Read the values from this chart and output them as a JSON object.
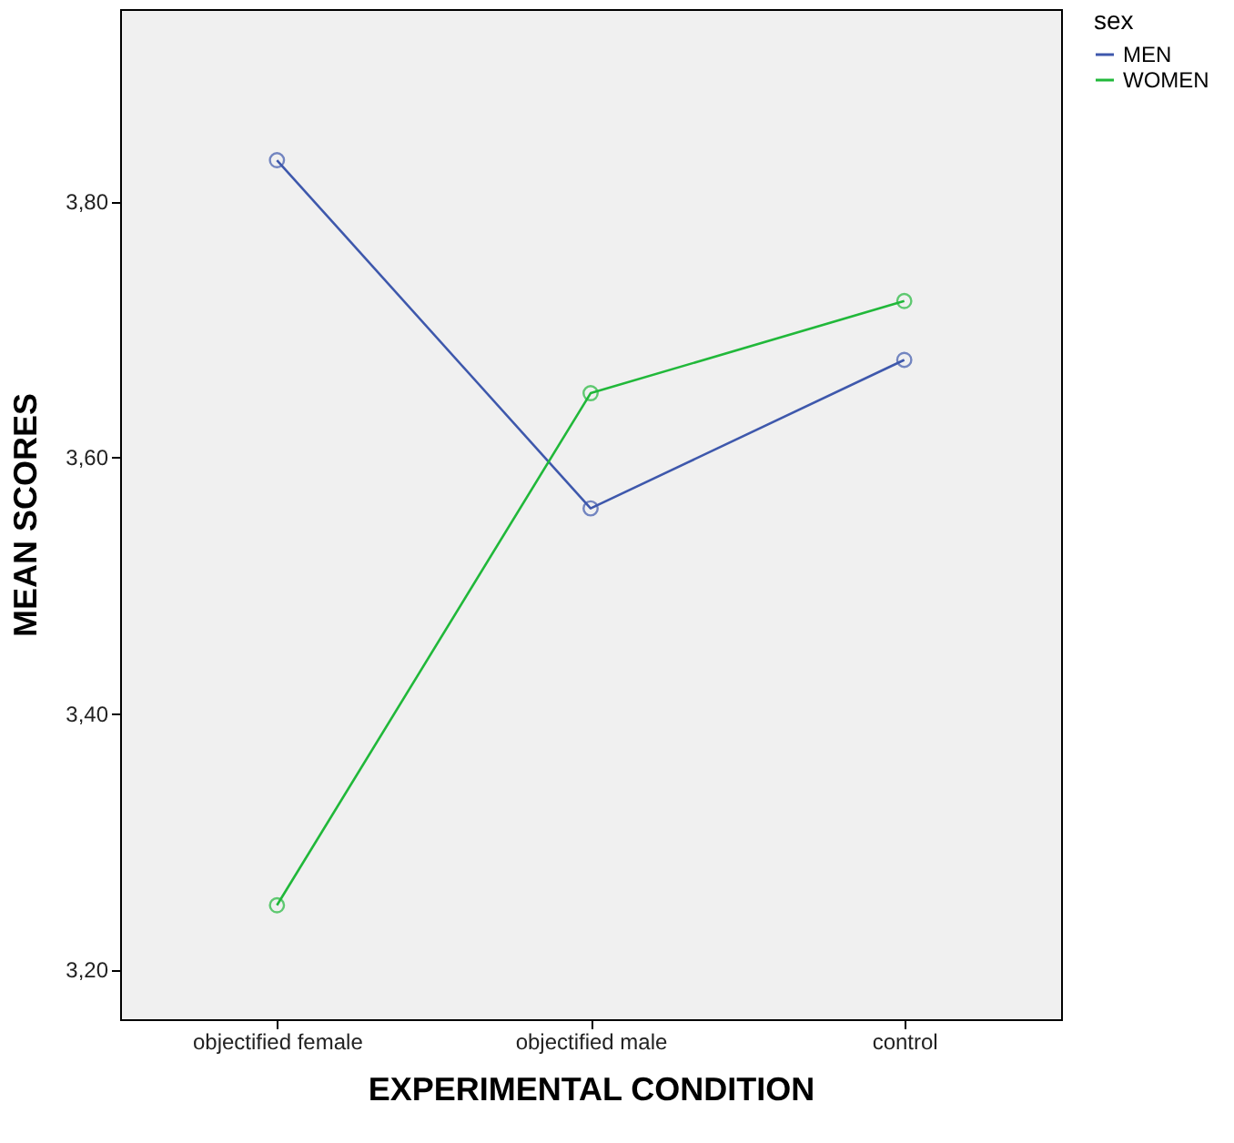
{
  "chart_data": {
    "type": "line",
    "xlabel": "EXPERIMENTAL CONDITION",
    "ylabel": "MEAN SCORES",
    "legend_title": "sex",
    "legend": "top right",
    "marker": "circle",
    "line_style": "solid",
    "grid": false,
    "categories": [
      "objectified female",
      "objectified male",
      "control"
    ],
    "ylim": [
      3.161,
      3.95
    ],
    "yticks": [
      {
        "value": 3.2,
        "label": "3,20"
      },
      {
        "value": 3.4,
        "label": "3,40"
      },
      {
        "value": 3.6,
        "label": "3,60"
      },
      {
        "value": 3.8,
        "label": "3,80"
      }
    ],
    "series": [
      {
        "name": "MEN",
        "color": "#3e58ac",
        "values": [
          3.832,
          3.56,
          3.676
        ]
      },
      {
        "name": "WOMEN",
        "color": "#21b83a",
        "values": [
          3.25,
          3.65,
          3.722
        ]
      }
    ]
  }
}
